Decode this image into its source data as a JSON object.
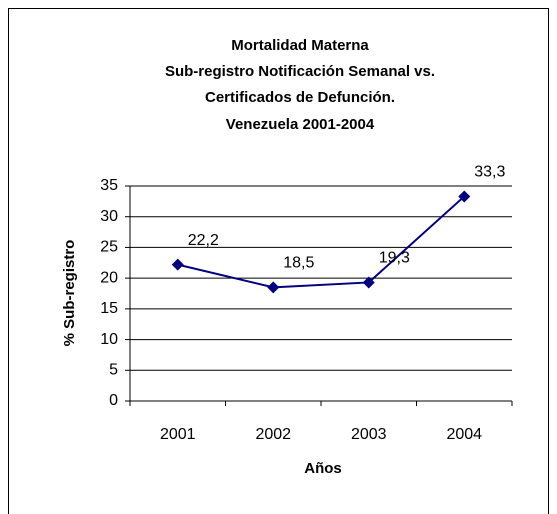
{
  "chart_data": {
    "type": "line",
    "title": [
      "Mortalidad Materna",
      "Sub-registro Notificación Semanal vs.",
      "Certificados de Defunción.",
      "Venezuela 2001-2004"
    ],
    "x_label": "Años",
    "y_label": "% Sub-registro",
    "categories": [
      "2001",
      "2002",
      "2003",
      "2004"
    ],
    "series": [
      {
        "name": "% Sub-registro",
        "color": "#000080",
        "values": [
          22.2,
          18.5,
          19.3,
          33.3
        ],
        "value_labels": [
          "22,2",
          "18,5",
          "19,3",
          "33,3"
        ]
      }
    ],
    "ylim": [
      0,
      35
    ],
    "yticks": [
      0,
      5,
      10,
      15,
      20,
      25,
      30,
      35
    ],
    "grid": true,
    "legend": false
  }
}
